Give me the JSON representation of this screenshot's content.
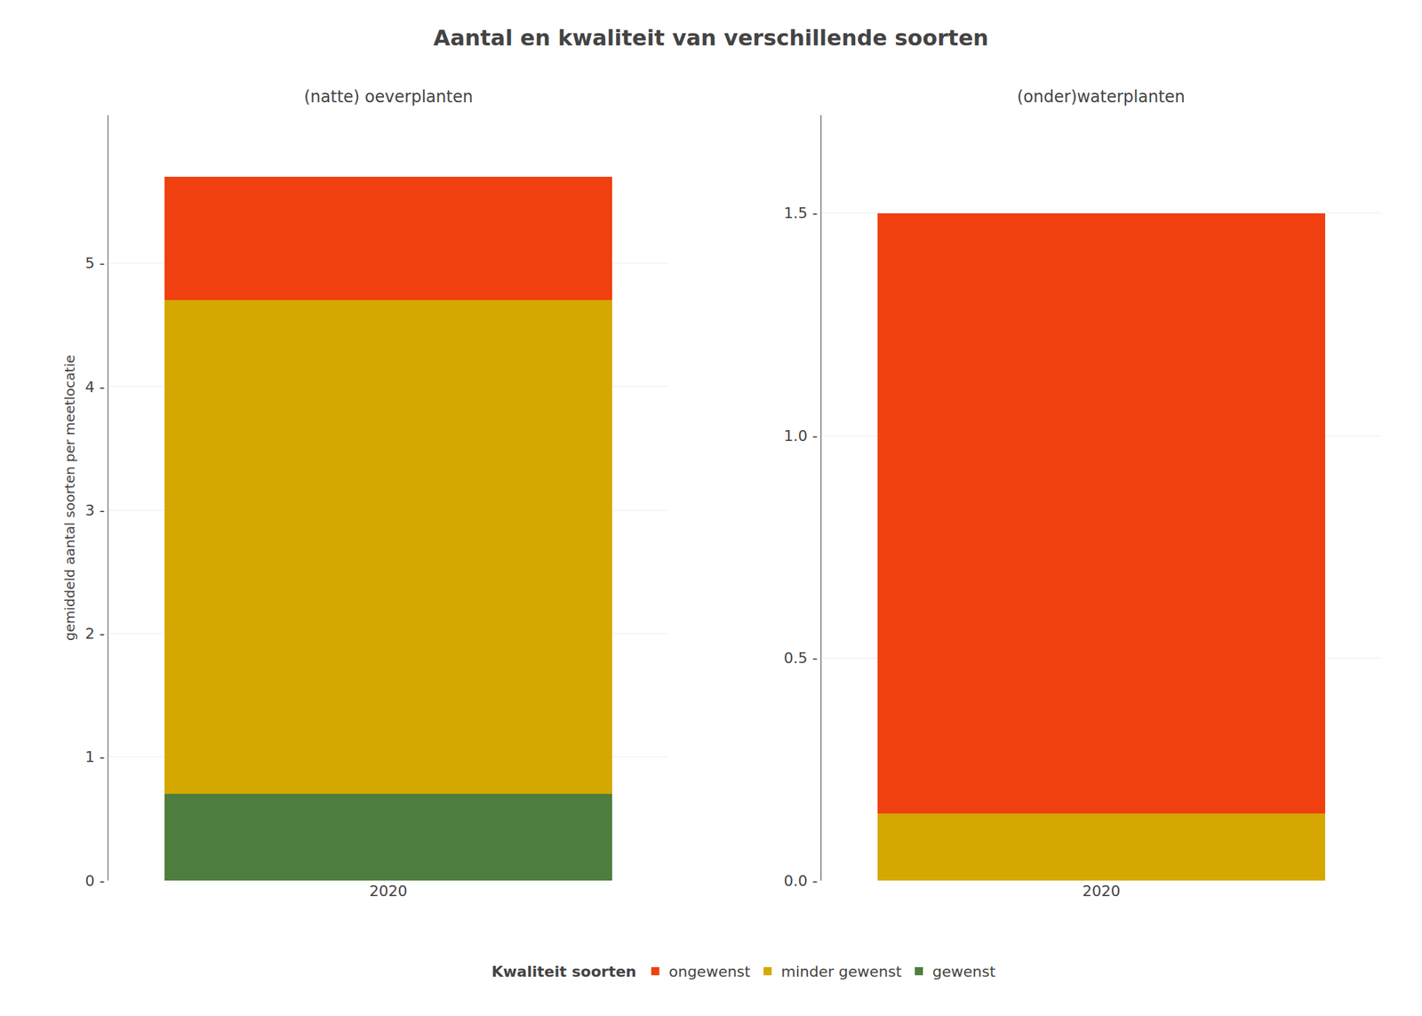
{
  "title": "Aantal en kwaliteit van verschillende soorten",
  "legend_title": "Kwaliteit soorten",
  "legend": "bottom",
  "chart_data": [
    {
      "type": "bar",
      "stacked": true,
      "grid": true,
      "subtitle": "(natte) oeverplanten",
      "ylabel": "gemiddeld aantal soorten per meetlocatie",
      "categories": [
        "2020"
      ],
      "series": [
        {
          "name": "gewenst",
          "color": "#4E7E3E",
          "values": [
            0.7
          ]
        },
        {
          "name": "minder gewenst",
          "color": "#D4A800",
          "values": [
            4.0
          ]
        },
        {
          "name": "ongewenst",
          "color": "#F04010",
          "values": [
            1.0
          ]
        }
      ],
      "ylim": [
        0,
        6.2
      ],
      "yticks": [
        {
          "value": 0,
          "label": "0 -"
        },
        {
          "value": 1,
          "label": "1 -"
        },
        {
          "value": 2,
          "label": "2 -"
        },
        {
          "value": 3,
          "label": "3 -"
        },
        {
          "value": 4,
          "label": "4 -"
        },
        {
          "value": 5,
          "label": "5 -"
        }
      ]
    },
    {
      "type": "bar",
      "stacked": true,
      "grid": true,
      "subtitle": "(onder)waterplanten",
      "categories": [
        "2020"
      ],
      "series": [
        {
          "name": "minder gewenst",
          "color": "#D4A800",
          "values": [
            0.15
          ]
        },
        {
          "name": "ongewenst",
          "color": "#F04010",
          "values": [
            1.35
          ]
        }
      ],
      "ylim": [
        0,
        1.72
      ],
      "yticks": [
        {
          "value": 0.0,
          "label": "0.0 -"
        },
        {
          "value": 0.5,
          "label": "0.5 -"
        },
        {
          "value": 1.0,
          "label": "1.0 -"
        },
        {
          "value": 1.5,
          "label": "1.5 -"
        }
      ]
    }
  ]
}
